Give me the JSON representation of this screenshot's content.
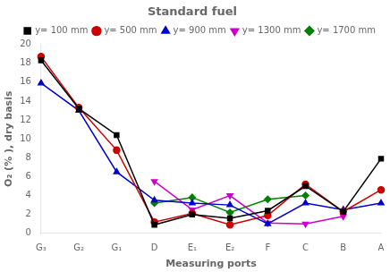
{
  "chart_data": {
    "type": "line",
    "title": "Standard fuel",
    "xlabel": "Measuring ports",
    "ylabel": "O₂ (% ), dry basis",
    "categories": [
      "G₃",
      "G₂",
      "G₁",
      "D",
      "E₁",
      "E₂",
      "F",
      "C",
      "B",
      "A"
    ],
    "series": [
      {
        "name": "y= 100 mm",
        "color": "#000000",
        "marker": "square",
        "values": [
          18.3,
          13.2,
          10.4,
          0.9,
          2.0,
          1.6,
          2.4,
          5.0,
          2.3,
          7.9
        ]
      },
      {
        "name": "y= 500 mm",
        "color": "#cc0000",
        "marker": "circle",
        "values": [
          18.7,
          13.3,
          8.8,
          1.2,
          2.1,
          0.9,
          1.9,
          5.2,
          2.3,
          4.6
        ]
      },
      {
        "name": "y= 900 mm",
        "color": "#0000cc",
        "marker": "triangle_up",
        "values": [
          15.9,
          13.0,
          6.5,
          3.5,
          3.2,
          3.0,
          1.0,
          3.2,
          2.5,
          3.2
        ]
      },
      {
        "name": "y= 1300 mm",
        "color": "#cc00cc",
        "marker": "triangle_down",
        "values": [
          null,
          null,
          null,
          5.5,
          2.5,
          4.0,
          1.1,
          1.0,
          1.8,
          null
        ]
      },
      {
        "name": "y= 1700 mm",
        "color": "#008000",
        "marker": "diamond",
        "values": [
          null,
          null,
          null,
          3.2,
          3.8,
          2.2,
          3.6,
          4.0,
          null,
          null
        ]
      }
    ],
    "ylim": [
      0,
      20
    ],
    "yticks": [
      0,
      2,
      4,
      6,
      8,
      10,
      12,
      14,
      16,
      18,
      20
    ],
    "grid": false,
    "legend": "upper right"
  }
}
